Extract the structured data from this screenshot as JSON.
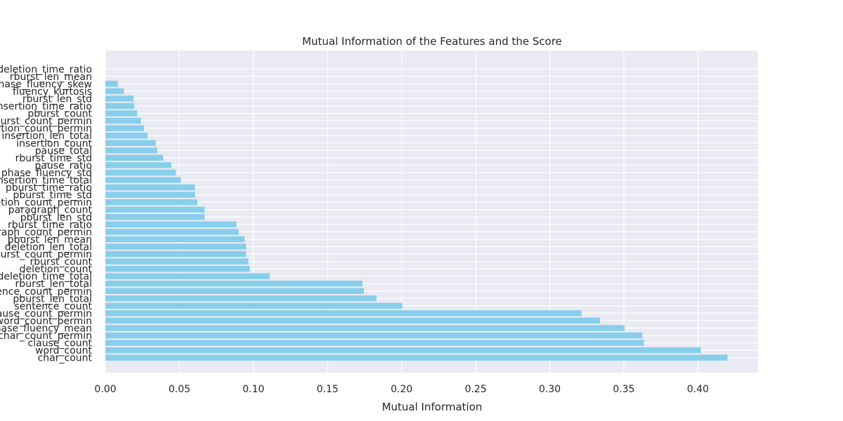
{
  "chart_data": {
    "type": "bar",
    "orientation": "horizontal",
    "title": "Mutual Information of the Features and the Score",
    "xlabel": "Mutual Information",
    "ylabel": "",
    "xlim": [
      0,
      0.44
    ],
    "xticks": [
      "0.00",
      "0.05",
      "0.10",
      "0.15",
      "0.20",
      "0.25",
      "0.30",
      "0.35",
      "0.40"
    ],
    "grid": true,
    "categories": [
      "deletion_time_ratio",
      "rburst_len_mean",
      "phase_fluency_skew",
      "fluency_kurtosis",
      "rburst_len_std",
      "insertion_time_ratio",
      "pburst_count",
      "pburst_count_permin",
      "insertion_count_permin",
      "insertion_len_total",
      "insertion_count",
      "pause_total",
      "rburst_time_std",
      "pause_ratio",
      "phase_fluency_std",
      "insertion_time_total",
      "pburst_time_ratio",
      "pburst_time_std",
      "deletion_count_permin",
      "paragraph_count",
      "pburst_len_std",
      "rburst_time_ratio",
      "paragraph_count_permin",
      "pburst_len_mean",
      "deletion_len_total",
      "rburst_count_permin",
      "rburst_count",
      "deletion_count",
      "deletion_time_total",
      "rburst_len_total",
      "sentence_count_permin",
      "pburst_len_total",
      "sentence_count",
      "clause_count_permin",
      "word_count_permin",
      "phase_fluency_mean",
      "char_count_permin",
      "clause_count",
      "word_count",
      "char_count"
    ],
    "values": [
      0.0,
      0.0,
      0.0085,
      0.0125,
      0.019,
      0.0195,
      0.0215,
      0.024,
      0.026,
      0.0285,
      0.034,
      0.035,
      0.039,
      0.0445,
      0.0475,
      0.051,
      0.0605,
      0.0605,
      0.062,
      0.067,
      0.067,
      0.0885,
      0.09,
      0.094,
      0.095,
      0.095,
      0.0965,
      0.0975,
      0.111,
      0.1735,
      0.1745,
      0.183,
      0.2005,
      0.3215,
      0.334,
      0.3505,
      0.3625,
      0.3635,
      0.402,
      0.42
    ],
    "bar_color": "#87ceeb",
    "background_color": "#eaeaf2",
    "grid_color": "#ffffff"
  }
}
